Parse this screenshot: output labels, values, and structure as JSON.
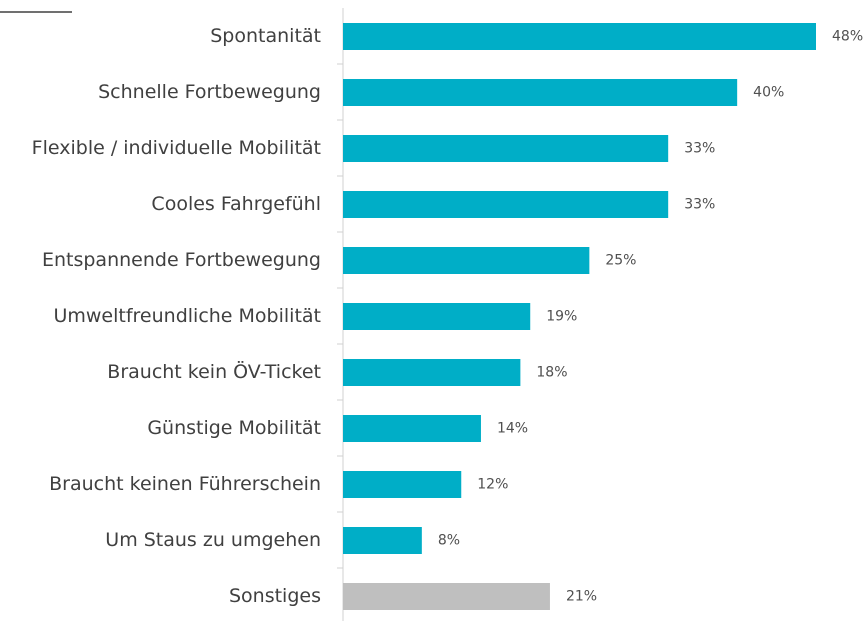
{
  "chart_data": {
    "type": "bar",
    "orientation": "horizontal",
    "categories": [
      "Spontanität",
      "Schnelle Fortbewegung",
      "Flexible / individuelle Mobilität",
      "Cooles Fahrgefühl",
      "Entspannende Fortbewegung",
      "Umweltfreundliche Mobilität",
      "Braucht kein ÖV-Ticket",
      "Günstige Mobilität",
      "Braucht keinen Führerschein",
      "Um Staus zu umgehen",
      "Sonstiges"
    ],
    "values": [
      48,
      40,
      33,
      33,
      25,
      19,
      18,
      14,
      12,
      8,
      21
    ],
    "value_labels": [
      "48%",
      "40%",
      "33%",
      "33%",
      "25%",
      "19%",
      "18%",
      "14%",
      "12%",
      "8%",
      "21%"
    ],
    "colors": [
      "#00aec7",
      "#00aec7",
      "#00aec7",
      "#00aec7",
      "#00aec7",
      "#00aec7",
      "#00aec7",
      "#00aec7",
      "#00aec7",
      "#00aec7",
      "#bfbfbf"
    ]
  }
}
